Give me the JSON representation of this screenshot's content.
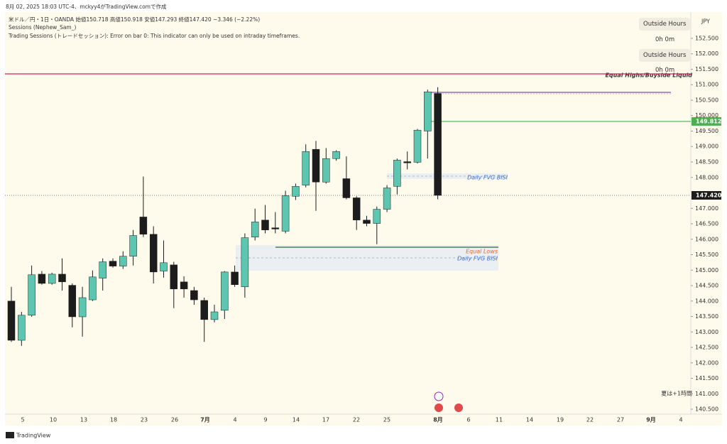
{
  "chart_data": {
    "type": "candlestick",
    "created": "8月 02, 2025 18:03 UTC-4、mckyy4がTradingView.comで作成",
    "symbol": "米ドル／円・1日・OANDA",
    "ohlc_text": "始値150.718 高値150.918 安値147.293 終値147.420 −3.346 (−2.22%)",
    "indicator1": "Sessions (Nephew_Sam_)",
    "indicator2": "Trading Sessions (トレードセッション): Error on bar 0: This indicator can only be used on intraday timeframes.",
    "session_buttons": [
      "Outside Hours",
      "Outside Hours"
    ],
    "session_times": [
      "0h 0m",
      "0h 0m"
    ],
    "currency": "JPY",
    "dst_note": "夏は+1時間",
    "brand": "TradingView",
    "annotations": {
      "equal_highs": "Equal Highs/Buyside Liquid",
      "fvg_upper": "Daily FVG BISI",
      "equal_lows": "Equal Lows",
      "fvg_lower": "Daily FVG BISI"
    },
    "x_labels": [
      "5",
      "10",
      "13",
      "18",
      "23",
      "26",
      "7月",
      "4",
      "9",
      "14",
      "17",
      "22",
      "25",
      "8月",
      "6",
      "11",
      "14",
      "19",
      "22",
      "27",
      "9月",
      "4"
    ],
    "open": [
      144.0,
      142.73,
      143.54,
      144.87,
      144.57,
      144.87,
      144.51,
      143.49,
      144.04,
      144.74,
      145.29,
      145.13,
      145.45,
      146.72,
      146.16,
      144.97,
      145.17,
      144.62,
      144.34,
      144.02,
      143.4,
      143.7,
      144.94,
      144.46,
      146.07,
      146.62,
      146.37,
      146.26,
      147.39,
      147.75,
      148.91,
      147.85,
      148.61,
      147.96,
      147.34,
      146.62,
      146.51,
      146.97,
      147.71,
      148.51,
      148.49,
      149.5,
      150.718
    ],
    "high": [
      144.46,
      143.65,
      145.15,
      144.97,
      144.92,
      145.38,
      144.57,
      144.46,
      144.99,
      145.38,
      145.38,
      145.61,
      146.3,
      148.03,
      146.42,
      145.96,
      145.27,
      144.8,
      144.46,
      144.11,
      143.88,
      144.97,
      145.15,
      146.19,
      146.99,
      147.11,
      146.88,
      147.57,
      147.8,
      149.07,
      149.18,
      148.95,
      148.88,
      148.68,
      147.39,
      146.76,
      147.06,
      147.75,
      148.61,
      148.84,
      149.57,
      150.84,
      150.918
    ],
    "low": [
      142.68,
      142.55,
      143.49,
      144.53,
      144.53,
      144.34,
      143.15,
      142.85,
      144.0,
      144.34,
      145.08,
      145.04,
      145.15,
      146.07,
      144.57,
      144.76,
      143.77,
      144.11,
      143.88,
      142.68,
      143.31,
      143.42,
      144.46,
      144.11,
      145.96,
      146.19,
      146.19,
      146.19,
      147.27,
      147.68,
      146.92,
      147.8,
      148.54,
      147.29,
      146.3,
      146.42,
      145.84,
      146.88,
      147.45,
      148.26,
      148.45,
      148.61,
      147.293
    ],
    "close": [
      142.73,
      143.54,
      144.85,
      144.57,
      144.87,
      144.62,
      143.49,
      144.11,
      144.78,
      145.27,
      145.13,
      145.45,
      146.12,
      146.16,
      144.94,
      145.24,
      144.39,
      144.39,
      144.04,
      143.4,
      143.65,
      144.94,
      144.53,
      146.05,
      146.56,
      146.3,
      146.33,
      147.41,
      147.71,
      148.84,
      147.85,
      148.61,
      148.84,
      147.34,
      146.62,
      146.51,
      146.97,
      147.66,
      148.56,
      148.47,
      149.53,
      150.77,
      147.42
    ],
    "up_color": "#5cc6b1",
    "down_color": "#1c1c1c",
    "ylim": [
      140.34,
      153.35
    ],
    "yticks": [
      {
        "value": 152.5,
        "label": "152.500"
      },
      {
        "value": 152.0,
        "label": "152.000"
      },
      {
        "value": 151.5,
        "label": "151.500"
      },
      {
        "value": 151.0,
        "label": "151.000"
      },
      {
        "value": 150.5,
        "label": "150.500"
      },
      {
        "value": 150.0,
        "label": "150.000"
      },
      {
        "value": 149.5,
        "label": "149.500"
      },
      {
        "value": 149.0,
        "label": "149.000"
      },
      {
        "value": 148.5,
        "label": "148.500"
      },
      {
        "value": 148.0,
        "label": "148.000"
      },
      {
        "value": 147.0,
        "label": "147.000"
      },
      {
        "value": 146.5,
        "label": "146.500"
      },
      {
        "value": 146.0,
        "label": "146.000"
      },
      {
        "value": 145.5,
        "label": "145.500"
      },
      {
        "value": 145.0,
        "label": "145.000"
      },
      {
        "value": 144.5,
        "label": "144.500"
      },
      {
        "value": 144.0,
        "label": "144.000"
      },
      {
        "value": 143.5,
        "label": "143.500"
      },
      {
        "value": 143.0,
        "label": "143.000"
      },
      {
        "value": 142.5,
        "label": "142.500"
      },
      {
        "value": 142.0,
        "label": "142.000"
      },
      {
        "value": 141.5,
        "label": "141.500"
      },
      {
        "value": 141.0,
        "label": "141.000"
      },
      {
        "value": 140.5,
        "label": "140.500"
      }
    ],
    "last_price": {
      "value": 147.42,
      "label": "147.420"
    },
    "level_green": {
      "value": 149.812,
      "label": "149.812",
      "color": "#4caf50"
    },
    "level_red": {
      "value": 151.35,
      "color": "#d81e5b"
    },
    "grid": false
  }
}
